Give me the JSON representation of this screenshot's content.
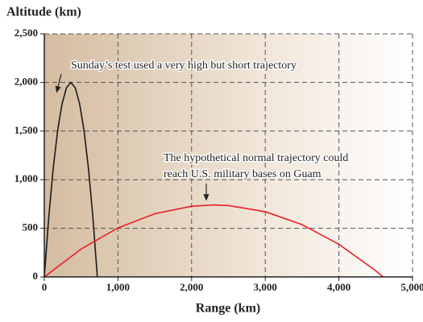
{
  "chart_data": {
    "type": "line",
    "y_label": "Altitude (km)",
    "x_label": "Range (km)",
    "annotations": [
      "Sunday’s test used a very high but short trajectory",
      "The hypothetical normal trajectory could",
      "reach U.S. military bases on Guam"
    ],
    "series": [
      {
        "color": "#1a1a1a",
        "x": [
          0,
          60,
          120,
          180,
          240,
          300,
          360,
          420,
          480,
          540,
          600,
          660,
          720
        ],
        "values": [
          0,
          611,
          1111,
          1500,
          1778,
          1944,
          2000,
          1944,
          1778,
          1500,
          1111,
          611,
          0
        ]
      },
      {
        "color": "#e8202a",
        "x": [
          0,
          500,
          1000,
          1500,
          2000,
          2300,
          2500,
          3000,
          3500,
          4000,
          4500,
          4600
        ],
        "values": [
          0,
          287,
          504,
          650,
          727,
          740,
          734,
          671,
          538,
          336,
          63,
          0
        ]
      }
    ],
    "xlim": [
      0,
      5000
    ],
    "ylim": [
      0,
      2500
    ],
    "xticks": [
      0,
      {
        "value": 1000,
        "label": "1,000"
      },
      {
        "value": 2000,
        "label": "2,000"
      },
      {
        "value": 3000,
        "label": "3,000"
      },
      {
        "value": 4000,
        "label": "4,000"
      },
      {
        "value": 5000,
        "label": "5,000"
      }
    ],
    "yticks": [
      0,
      500,
      {
        "value": 1000,
        "label": "1,000"
      },
      {
        "value": 1500,
        "label": "1,500"
      },
      {
        "value": 2000,
        "label": "2,000"
      },
      {
        "value": 2500,
        "label": "2,500"
      }
    ],
    "grid": true
  }
}
